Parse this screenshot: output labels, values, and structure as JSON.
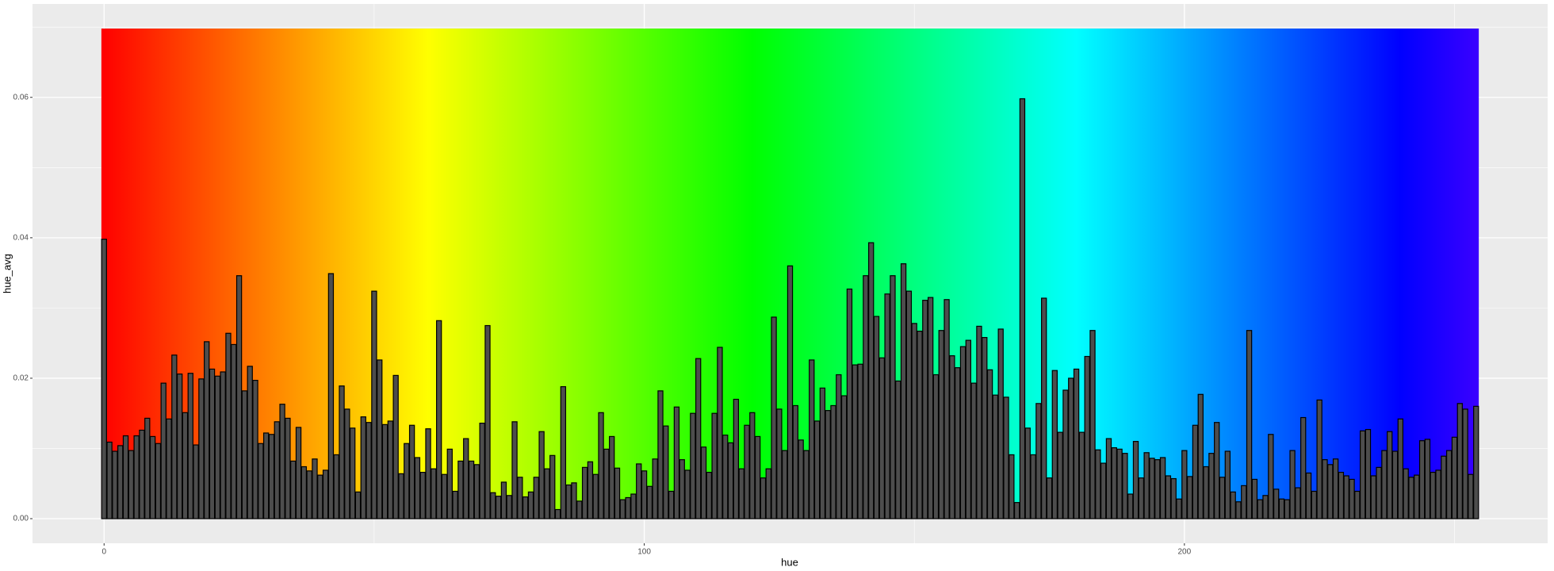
{
  "chart_data": {
    "type": "bar",
    "x_label": "hue",
    "y_label": "hue_avg",
    "x": [
      0,
      1,
      2,
      3,
      4,
      5,
      6,
      7,
      8,
      9,
      10,
      11,
      12,
      13,
      14,
      15,
      16,
      17,
      18,
      19,
      20,
      21,
      22,
      23,
      24,
      25,
      26,
      27,
      28,
      29,
      30,
      31,
      32,
      33,
      34,
      35,
      36,
      37,
      38,
      39,
      40,
      41,
      42,
      43,
      44,
      45,
      46,
      47,
      48,
      49,
      50,
      51,
      52,
      53,
      54,
      55,
      56,
      57,
      58,
      59,
      60,
      61,
      62,
      63,
      64,
      65,
      66,
      67,
      68,
      69,
      70,
      71,
      72,
      73,
      74,
      75,
      76,
      77,
      78,
      79,
      80,
      81,
      82,
      83,
      84,
      85,
      86,
      87,
      88,
      89,
      90,
      91,
      92,
      93,
      94,
      95,
      96,
      97,
      98,
      99,
      100,
      101,
      102,
      103,
      104,
      105,
      106,
      107,
      108,
      109,
      110,
      111,
      112,
      113,
      114,
      115,
      116,
      117,
      118,
      119,
      120,
      121,
      122,
      123,
      124,
      125,
      126,
      127,
      128,
      129,
      130,
      131,
      132,
      133,
      134,
      135,
      136,
      137,
      138,
      139,
      140,
      141,
      142,
      143,
      144,
      145,
      146,
      147,
      148,
      149,
      150,
      151,
      152,
      153,
      154,
      155,
      156,
      157,
      158,
      159,
      160,
      161,
      162,
      163,
      164,
      165,
      166,
      167,
      168,
      169,
      170,
      171,
      172,
      173,
      174,
      175,
      176,
      177,
      178,
      179,
      180,
      181,
      182,
      183,
      184,
      185,
      186,
      187,
      188,
      189,
      190,
      191,
      192,
      193,
      194,
      195,
      196,
      197,
      198,
      199,
      200,
      201,
      202,
      203,
      204,
      205,
      206,
      207,
      208,
      209,
      210,
      211,
      212,
      213,
      214,
      215,
      216,
      217,
      218,
      219,
      220,
      221,
      222,
      223,
      224,
      225,
      226,
      227,
      228,
      229,
      230,
      231,
      232,
      233,
      234,
      235,
      236,
      237,
      238,
      239,
      240,
      241,
      242,
      243,
      244,
      245,
      246,
      247,
      248,
      249,
      250,
      251,
      252,
      253,
      254
    ],
    "values": [
      0.0398,
      0.0109,
      0.0096,
      0.0104,
      0.0118,
      0.0097,
      0.0118,
      0.0126,
      0.0143,
      0.0117,
      0.0107,
      0.0193,
      0.0142,
      0.0233,
      0.0206,
      0.0151,
      0.0207,
      0.0105,
      0.0199,
      0.0252,
      0.0213,
      0.0203,
      0.0209,
      0.0264,
      0.0248,
      0.0346,
      0.0182,
      0.0217,
      0.0197,
      0.0107,
      0.0122,
      0.012,
      0.0138,
      0.0163,
      0.0143,
      0.0082,
      0.013,
      0.0074,
      0.0068,
      0.0085,
      0.0062,
      0.0069,
      0.0349,
      0.0091,
      0.0189,
      0.0156,
      0.0129,
      0.0038,
      0.0145,
      0.0137,
      0.0324,
      0.0226,
      0.0134,
      0.0139,
      0.0204,
      0.0064,
      0.0107,
      0.0133,
      0.0087,
      0.0066,
      0.0128,
      0.0071,
      0.0282,
      0.0063,
      0.0099,
      0.0039,
      0.0082,
      0.0114,
      0.0082,
      0.0077,
      0.0136,
      0.0275,
      0.0037,
      0.0032,
      0.0052,
      0.0033,
      0.0138,
      0.0059,
      0.0031,
      0.0038,
      0.0059,
      0.0124,
      0.0071,
      0.009,
      0.0013,
      0.0188,
      0.0048,
      0.0051,
      0.0025,
      0.0073,
      0.0081,
      0.0063,
      0.0151,
      0.0099,
      0.0117,
      0.0072,
      0.0027,
      0.003,
      0.0035,
      0.0078,
      0.0068,
      0.0046,
      0.0085,
      0.0182,
      0.0132,
      0.0039,
      0.0159,
      0.0084,
      0.0069,
      0.015,
      0.0228,
      0.0102,
      0.0066,
      0.015,
      0.0244,
      0.0119,
      0.0108,
      0.017,
      0.0071,
      0.0133,
      0.0151,
      0.0117,
      0.0058,
      0.0071,
      0.0287,
      0.0156,
      0.0097,
      0.036,
      0.0161,
      0.0112,
      0.0097,
      0.0226,
      0.0139,
      0.0186,
      0.0154,
      0.0161,
      0.0205,
      0.0175,
      0.0327,
      0.0219,
      0.022,
      0.0346,
      0.0393,
      0.0288,
      0.0229,
      0.032,
      0.0346,
      0.0196,
      0.0363,
      0.0324,
      0.0278,
      0.0267,
      0.0311,
      0.0315,
      0.0205,
      0.0268,
      0.0312,
      0.0232,
      0.0215,
      0.0245,
      0.0254,
      0.0193,
      0.0274,
      0.0258,
      0.0212,
      0.0176,
      0.027,
      0.0173,
      0.0091,
      0.0023,
      0.0598,
      0.0129,
      0.0091,
      0.0164,
      0.0314,
      0.0058,
      0.0211,
      0.0123,
      0.0183,
      0.02,
      0.0213,
      0.0123,
      0.0231,
      0.0268,
      0.0098,
      0.0079,
      0.0114,
      0.0101,
      0.0099,
      0.0093,
      0.0035,
      0.011,
      0.0058,
      0.0094,
      0.0086,
      0.0084,
      0.0087,
      0.0061,
      0.0057,
      0.0028,
      0.0097,
      0.006,
      0.0133,
      0.0177,
      0.0074,
      0.0093,
      0.0137,
      0.0059,
      0.0096,
      0.0038,
      0.0024,
      0.0047,
      0.0268,
      0.0056,
      0.0027,
      0.0033,
      0.012,
      0.0042,
      0.0028,
      0.0027,
      0.0097,
      0.0044,
      0.0144,
      0.0065,
      0.0039,
      0.0169,
      0.0084,
      0.0077,
      0.0085,
      0.0066,
      0.0061,
      0.0056,
      0.0039,
      0.0125,
      0.0127,
      0.0061,
      0.0073,
      0.0097,
      0.0124,
      0.0096,
      0.0142,
      0.0071,
      0.0059,
      0.0062,
      0.0111,
      0.0113,
      0.0066,
      0.0069,
      0.0089,
      0.0097,
      0.0116,
      0.0164,
      0.0156,
      0.0063,
      0.016
    ],
    "color": "#4d4d4d",
    "xlim": [
      -13.25,
      267.25
    ],
    "xticks": [
      0,
      100,
      200
    ],
    "ylim": [
      -0.0035,
      0.0733
    ],
    "yticks": [
      {
        "value": 0,
        "label": "0.00"
      },
      {
        "value": 0.02,
        "label": "0.02"
      },
      {
        "value": 0.04,
        "label": "0.04"
      },
      {
        "value": 0.06,
        "label": "0.06"
      }
    ],
    "grid": true
  }
}
